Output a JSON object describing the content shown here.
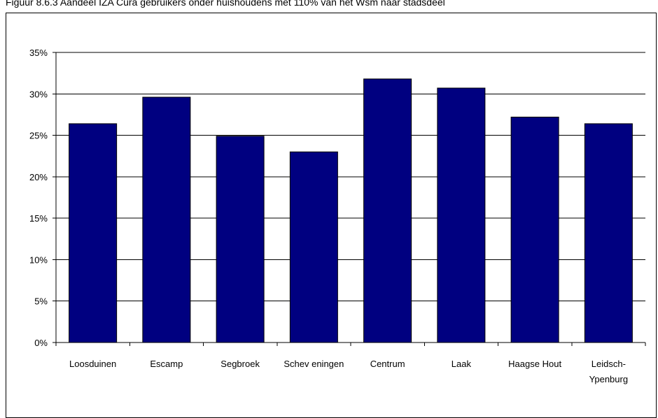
{
  "caption": "Figuur 8.6.3 Aandeel IZA Cura gebruikers onder huishoudens met 110% van het Wsm naar stadsdeel",
  "chart_data": {
    "type": "bar",
    "categories": [
      "Loosduinen",
      "Escamp",
      "Segbroek",
      "Schev eningen",
      "Centrum",
      "Laak",
      "Haagse Hout",
      "Leidsch-\nYpenburg"
    ],
    "values": [
      26.4,
      29.6,
      24.9,
      23.0,
      31.8,
      30.7,
      27.2,
      26.4
    ],
    "unit": "%",
    "ylim": [
      0,
      35
    ],
    "yticks": [
      0,
      5,
      10,
      15,
      20,
      25,
      30,
      35
    ],
    "ytick_labels": [
      "0%",
      "5%",
      "10%",
      "15%",
      "20%",
      "25%",
      "30%",
      "35%"
    ],
    "grid": true,
    "title": "",
    "xlabel": "",
    "ylabel": "",
    "colors": {
      "bar": "#000080",
      "bar_edge": "#000000",
      "grid": "#000000"
    }
  }
}
